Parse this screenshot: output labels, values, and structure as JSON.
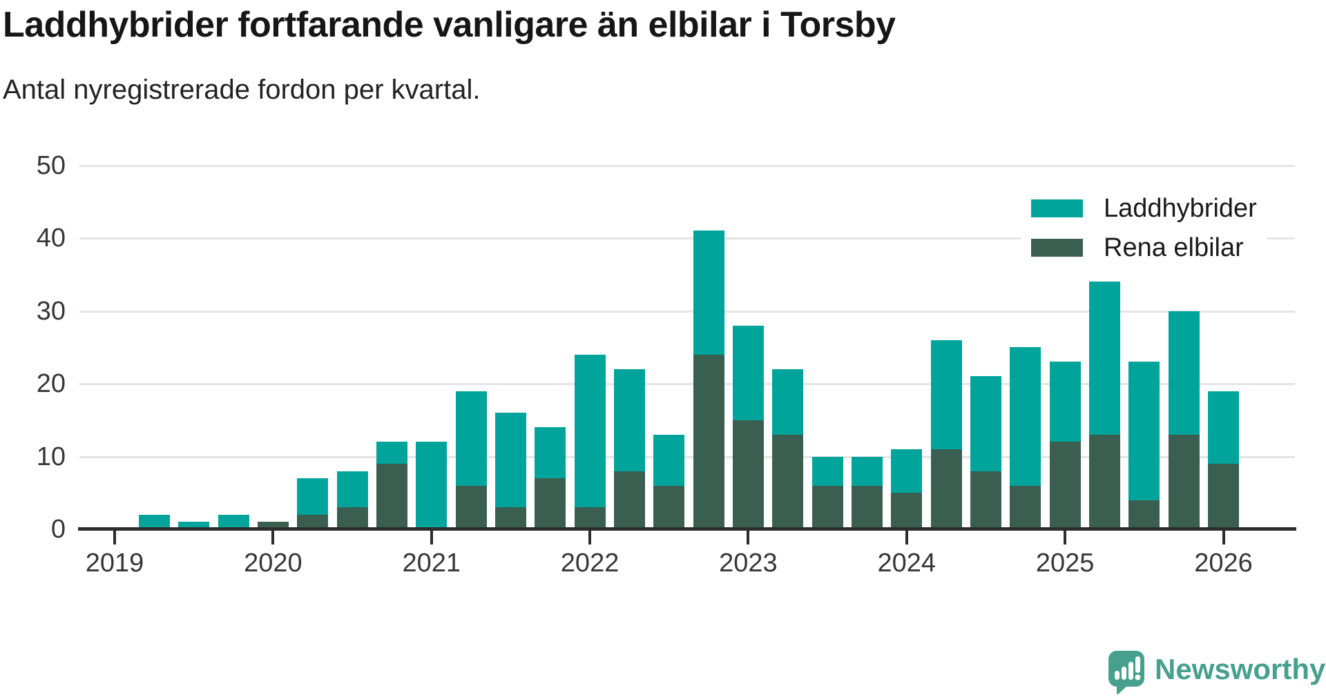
{
  "title": "Laddhybrider fortfarande vanligare än elbilar i Torsby",
  "subtitle": "Antal nyregistrerade fordon per kvartal.",
  "legend": {
    "position": "top-right",
    "items": [
      {
        "label": "Laddhybrider",
        "color": "#00a49b"
      },
      {
        "label": "Rena elbilar",
        "color": "#3a5f51"
      }
    ]
  },
  "y_axis": {
    "ticks": [
      0,
      10,
      20,
      30,
      40,
      50
    ],
    "max": 50
  },
  "x_axis": {
    "year_labels": [
      "2019",
      "2020",
      "2021",
      "2022",
      "2023",
      "2024",
      "2025",
      "2026"
    ]
  },
  "chart_data": {
    "type": "bar",
    "stacked": true,
    "title": "Laddhybrider fortfarande vanligare än elbilar i Torsby",
    "subtitle": "Antal nyregistrerade fordon per kvartal.",
    "xlabel": "",
    "ylabel": "",
    "ylim": [
      0,
      50
    ],
    "grid": true,
    "legend_position": "top-right",
    "categories": [
      "2019-K1",
      "2019-K2",
      "2019-K3",
      "2019-K4",
      "2020-K1",
      "2020-K2",
      "2020-K3",
      "2020-K4",
      "2021-K1",
      "2021-K2",
      "2021-K3",
      "2021-K4",
      "2022-K1",
      "2022-K2",
      "2022-K3",
      "2022-K4",
      "2023-K1",
      "2023-K2",
      "2023-K3",
      "2023-K4",
      "2024-K1",
      "2024-K2",
      "2024-K3",
      "2024-K4",
      "2025-K1",
      "2025-K2",
      "2025-K3",
      "2025-K4",
      "2026-K1"
    ],
    "series": [
      {
        "name": "Rena elbilar",
        "color": "#3a5f51",
        "stack_position": "bottom",
        "values": [
          0,
          0,
          0,
          0,
          1,
          2,
          3,
          9,
          0,
          6,
          3,
          7,
          3,
          8,
          6,
          24,
          15,
          13,
          6,
          6,
          5,
          11,
          8,
          6,
          12,
          13,
          4,
          13,
          9
        ]
      },
      {
        "name": "Laddhybrider",
        "color": "#00a49b",
        "stack_position": "top",
        "values": [
          0,
          2,
          1,
          2,
          0,
          5,
          5,
          3,
          12,
          13,
          13,
          7,
          21,
          14,
          7,
          17,
          13,
          9,
          4,
          4,
          6,
          15,
          13,
          19,
          11,
          21,
          19,
          17,
          10
        ]
      }
    ],
    "stack_totals": [
      0,
      2,
      1,
      2,
      1,
      7,
      8,
      12,
      12,
      19,
      16,
      14,
      24,
      22,
      13,
      41,
      28,
      22,
      10,
      10,
      11,
      26,
      21,
      25,
      23,
      34,
      23,
      30,
      19
    ]
  },
  "branding": {
    "name": "Newsworthy",
    "color": "#47a08e",
    "icon": "speech-bubble-bar-chart-exclamation-icon"
  }
}
